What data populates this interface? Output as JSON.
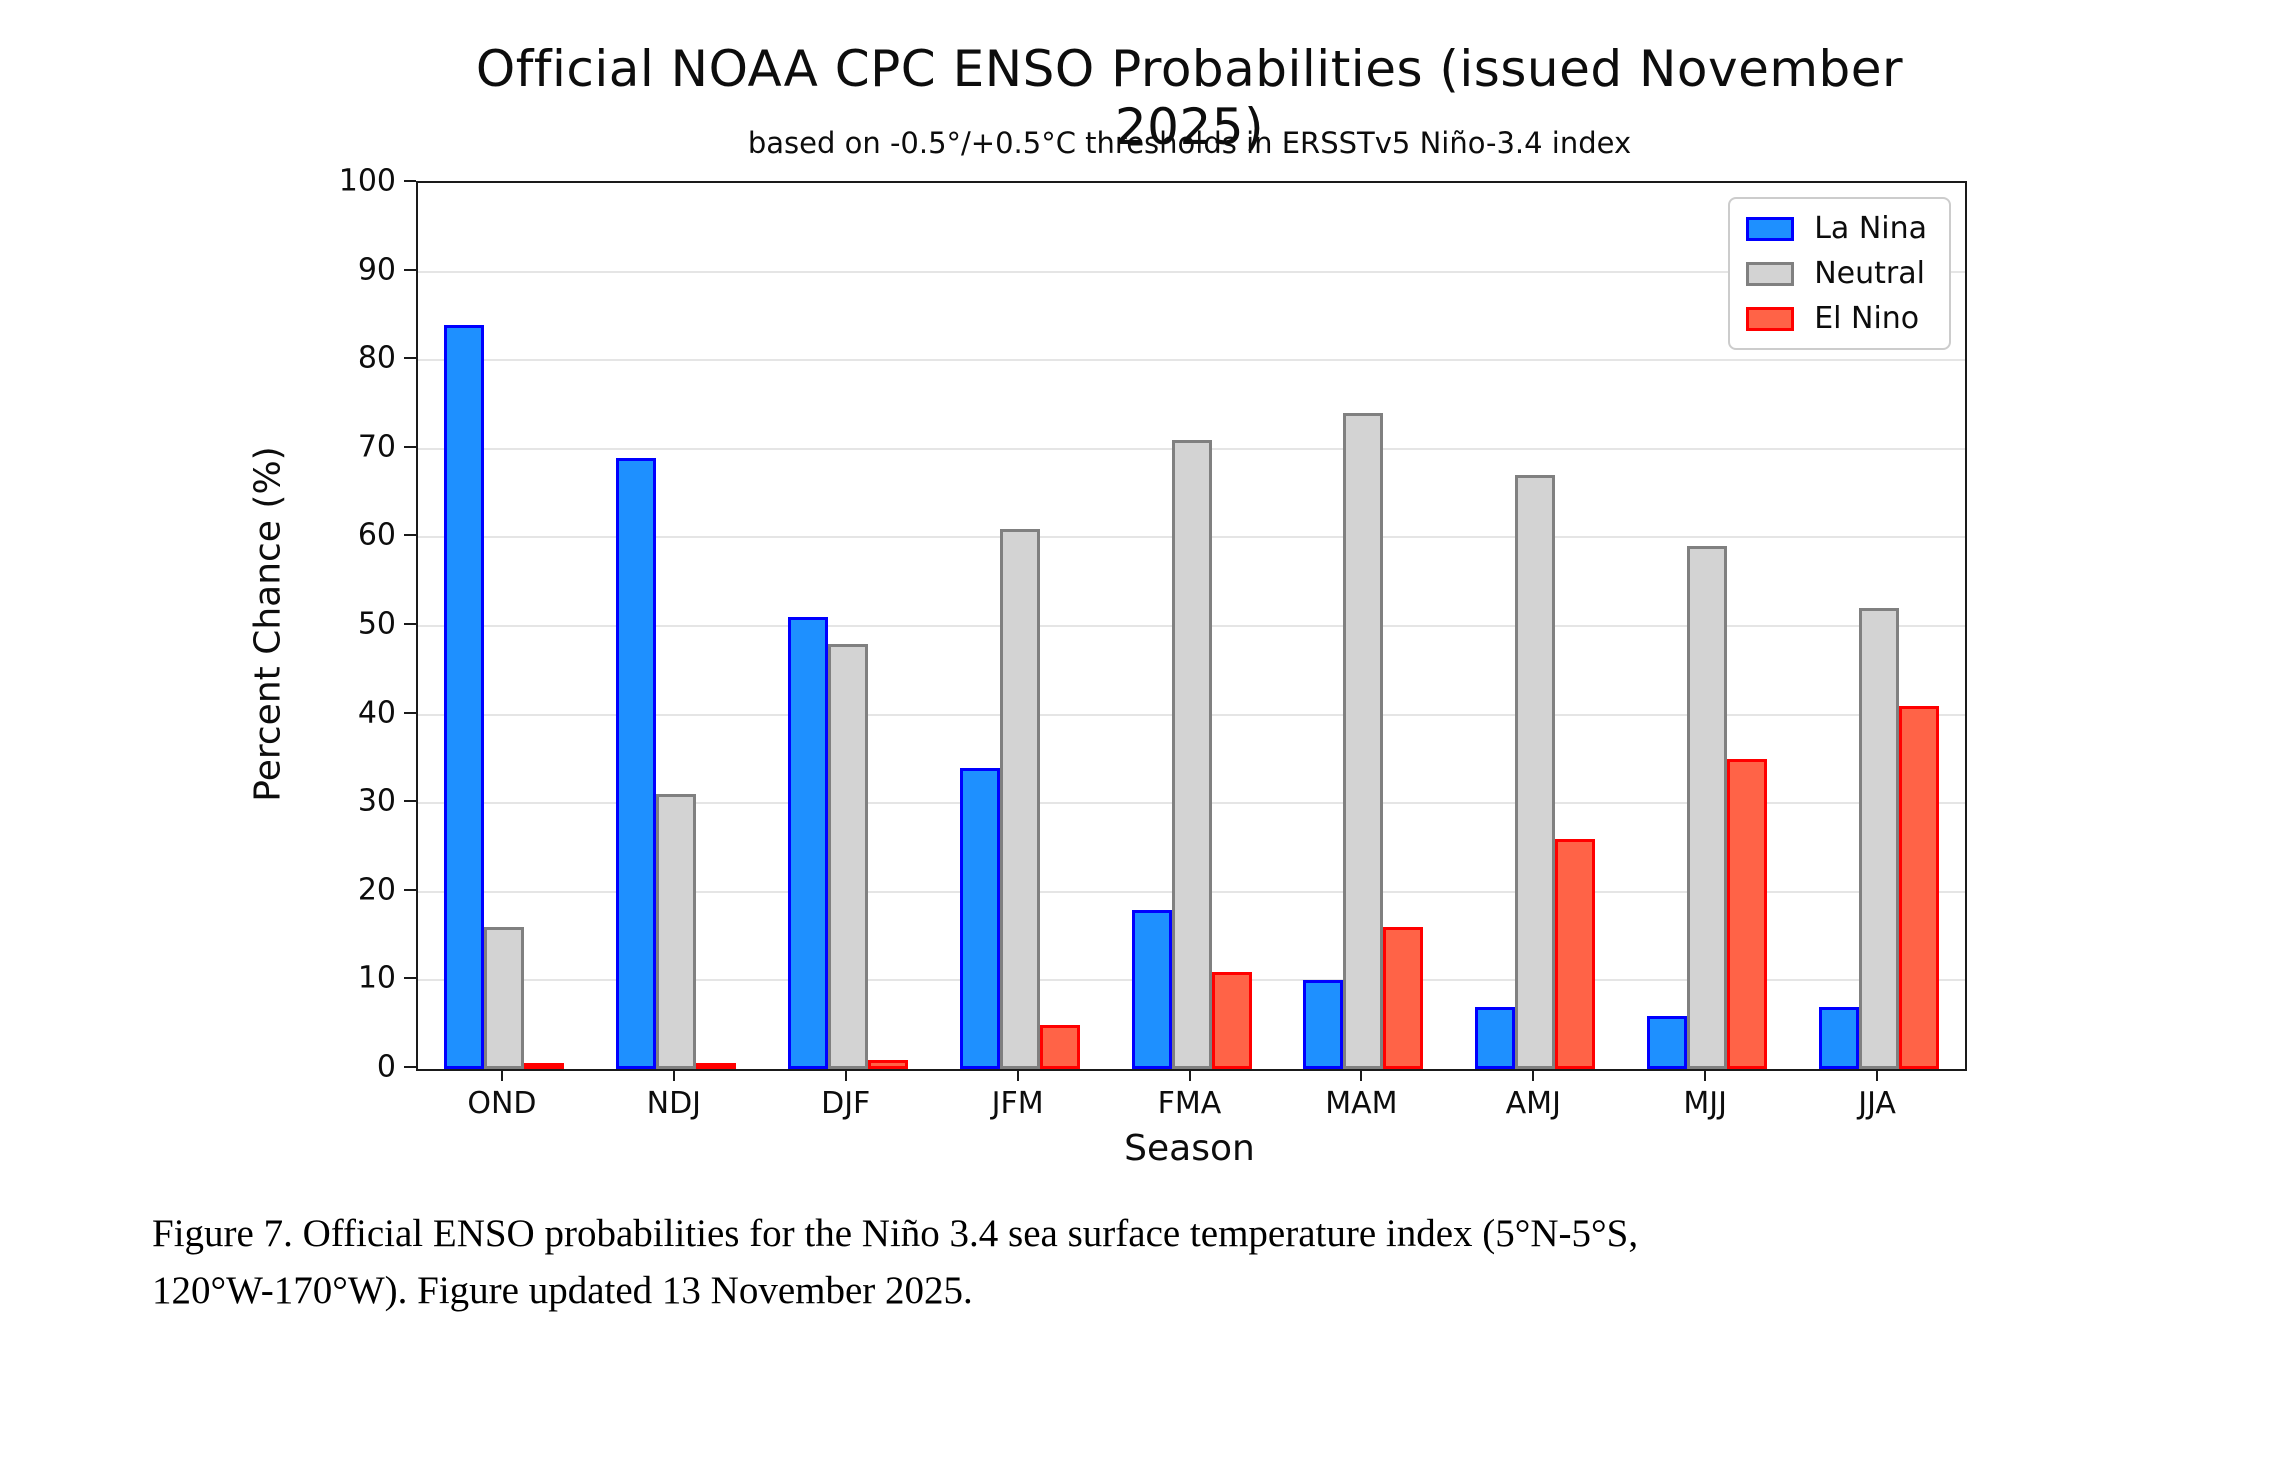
{
  "figure": {
    "title": "Official NOAA CPC ENSO Probabilities (issued November 2025)",
    "subtitle": "based on -0.5°/+0.5°C thresholds in ERSSTv5 Niño-3.4 index",
    "caption_line1": "Figure 7. Official ENSO probabilities for the Niño 3.4 sea surface temperature index (5°N-5°S,",
    "caption_line2": "120°W-170°W). Figure updated 13 November 2025."
  },
  "chart_data": {
    "type": "bar",
    "title": "Official NOAA CPC ENSO Probabilities (issued November 2025)",
    "subtitle": "based on -0.5°/+0.5°C thresholds in ERSSTv5 Niño-3.4 index",
    "xlabel": "Season",
    "ylabel": "Percent Chance (%)",
    "ylim": [
      0,
      100
    ],
    "ytick_step": 10,
    "grid": "horizontal",
    "legend_position": "upper-right",
    "categories": [
      "OND",
      "NDJ",
      "DJF",
      "JFM",
      "FMA",
      "MAM",
      "AMJ",
      "MJJ",
      "JJA"
    ],
    "series": [
      {
        "name": "La Nina",
        "fill": "#1E90FF",
        "edge": "#0000FF",
        "values": [
          84,
          69,
          51,
          34,
          18,
          10,
          7,
          6,
          7
        ]
      },
      {
        "name": "Neutral",
        "fill": "#D3D3D3",
        "edge": "#808080",
        "values": [
          16,
          31,
          48,
          61,
          71,
          74,
          67,
          59,
          52
        ]
      },
      {
        "name": "El Nino",
        "fill": "#FF6347",
        "edge": "#FF0000",
        "values": [
          0,
          0,
          1,
          5,
          11,
          16,
          26,
          35,
          41
        ]
      }
    ],
    "colors": {
      "la_nina_fill": "#1E90FF",
      "la_nina_edge": "#0000FF",
      "neutral_fill": "#D3D3D3",
      "neutral_edge": "#808080",
      "el_nino_fill": "#FF6347",
      "el_nino_edge": "#FF0000",
      "gridline": "#E5E5E5",
      "spine": "#1A1A1A"
    }
  }
}
